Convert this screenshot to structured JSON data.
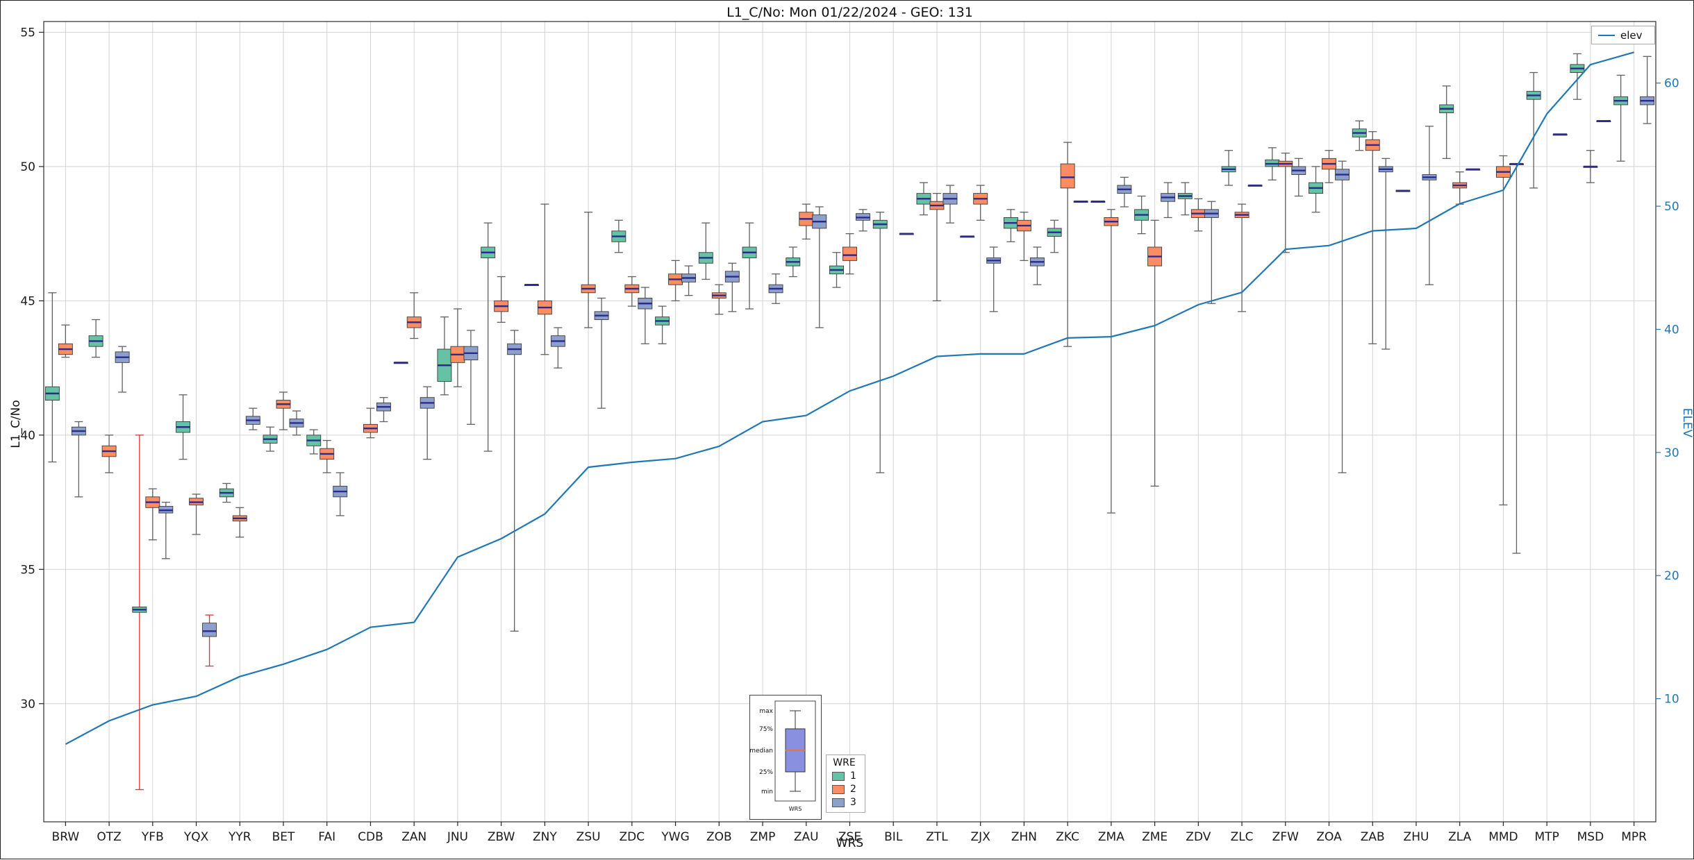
{
  "chart_data": {
    "type": "boxplot",
    "title": "L1_C/No: Mon 01/22/2024 - GEO: 131",
    "xlabel": "WRS",
    "ylabel": "L1_C/No",
    "ylabel_right": "ELEV",
    "ylim_left": [
      25.6,
      55.4
    ],
    "ylim_right": [
      0,
      65
    ],
    "yticks_left": [
      30,
      35,
      40,
      45,
      50,
      55
    ],
    "yticks_right": [
      10,
      20,
      30,
      40,
      50,
      60
    ],
    "grid": true,
    "legend_position": "upper right",
    "wre_legend_title": "WRE",
    "wre_series": [
      {
        "wre": "1",
        "color": "#66c2a5"
      },
      {
        "wre": "2",
        "color": "#fc8d62"
      },
      {
        "wre": "3",
        "color": "#8da0cb"
      }
    ],
    "median_color": "#2b2b8c",
    "whisker_color": "#606060",
    "categories": [
      "BRW",
      "OTZ",
      "YFB",
      "YQX",
      "YYR",
      "BET",
      "FAI",
      "CDB",
      "ZAN",
      "JNU",
      "ZBW",
      "ZNY",
      "ZSU",
      "ZDC",
      "YWG",
      "ZOB",
      "ZMP",
      "ZAU",
      "ZSE",
      "BIL",
      "ZTL",
      "ZJX",
      "ZHN",
      "ZKC",
      "ZMA",
      "ZME",
      "ZDV",
      "ZLC",
      "ZFW",
      "ZOA",
      "ZAB",
      "ZHU",
      "ZLA",
      "MMD",
      "MTP",
      "MSD",
      "MPR"
    ],
    "boxes": [
      [
        {
          "w": 1,
          "q1": 41.3,
          "m": 41.55,
          "q3": 41.8,
          "lo": 39.0,
          "hi": 45.3
        },
        {
          "w": 2,
          "q1": 43.0,
          "m": 43.2,
          "q3": 43.4,
          "lo": 42.9,
          "hi": 44.1
        },
        {
          "w": 3,
          "q1": 40.0,
          "m": 40.15,
          "q3": 40.3,
          "lo": 37.7,
          "hi": 40.5
        }
      ],
      [
        {
          "w": 1,
          "q1": 43.3,
          "m": 43.5,
          "q3": 43.7,
          "lo": 42.9,
          "hi": 44.3
        },
        {
          "w": 2,
          "q1": 39.2,
          "m": 39.4,
          "q3": 39.6,
          "lo": 38.6,
          "hi": 40.0
        },
        {
          "w": 3,
          "q1": 42.7,
          "m": 42.9,
          "q3": 43.1,
          "lo": 41.6,
          "hi": 43.3
        }
      ],
      [
        {
          "w": 1,
          "q1": 33.4,
          "m": 33.5,
          "q3": 33.6,
          "lo": 26.8,
          "hi": 40.0,
          "wc": "#e03131"
        },
        {
          "w": 2,
          "q1": 37.3,
          "m": 37.5,
          "q3": 37.7,
          "lo": 36.1,
          "hi": 38.0
        },
        {
          "w": 3,
          "q1": 37.1,
          "m": 37.2,
          "q3": 37.35,
          "lo": 35.4,
          "hi": 37.5
        }
      ],
      [
        {
          "w": 1,
          "q1": 40.1,
          "m": 40.3,
          "q3": 40.5,
          "lo": 39.1,
          "hi": 41.5
        },
        {
          "w": 2,
          "q1": 37.4,
          "m": 37.5,
          "q3": 37.65,
          "lo": 36.3,
          "hi": 37.8
        },
        {
          "w": 3,
          "q1": 32.5,
          "m": 32.7,
          "q3": 33.0,
          "lo": 31.4,
          "hi": 33.3,
          "wc": "#e03131"
        }
      ],
      [
        {
          "w": 1,
          "q1": 37.7,
          "m": 37.85,
          "q3": 38.0,
          "lo": 37.5,
          "hi": 38.2
        },
        {
          "w": 2,
          "q1": 36.8,
          "m": 36.9,
          "q3": 37.0,
          "lo": 36.2,
          "hi": 37.3
        },
        {
          "w": 3,
          "q1": 40.4,
          "m": 40.55,
          "q3": 40.7,
          "lo": 40.2,
          "hi": 41.0
        }
      ],
      [
        {
          "w": 1,
          "q1": 39.7,
          "m": 39.85,
          "q3": 40.0,
          "lo": 39.4,
          "hi": 40.3
        },
        {
          "w": 2,
          "q1": 41.0,
          "m": 41.15,
          "q3": 41.3,
          "lo": 40.2,
          "hi": 41.6
        },
        {
          "w": 3,
          "q1": 40.3,
          "m": 40.45,
          "q3": 40.6,
          "lo": 40.0,
          "hi": 40.9
        }
      ],
      [
        {
          "w": 1,
          "q1": 39.6,
          "m": 39.8,
          "q3": 40.0,
          "lo": 39.3,
          "hi": 40.2
        },
        {
          "w": 2,
          "q1": 39.1,
          "m": 39.3,
          "q3": 39.5,
          "lo": 38.6,
          "hi": 39.8
        },
        {
          "w": 3,
          "q1": 37.7,
          "m": 37.9,
          "q3": 38.1,
          "lo": 37.0,
          "hi": 38.6
        }
      ],
      [
        {
          "w": 2,
          "q1": 40.1,
          "m": 40.25,
          "q3": 40.4,
          "lo": 39.9,
          "hi": 41.0
        },
        {
          "w": 3,
          "q1": 40.9,
          "m": 41.05,
          "q3": 41.2,
          "lo": 40.5,
          "hi": 41.4
        }
      ],
      [
        {
          "w": 1,
          "q1": 42.7,
          "m": 42.7,
          "q3": 42.7,
          "lo": 42.7,
          "hi": 42.7
        },
        {
          "w": 2,
          "q1": 44.0,
          "m": 44.2,
          "q3": 44.4,
          "lo": 43.6,
          "hi": 45.3
        },
        {
          "w": 3,
          "q1": 41.0,
          "m": 41.2,
          "q3": 41.4,
          "lo": 39.1,
          "hi": 41.8
        }
      ],
      [
        {
          "w": 1,
          "q1": 42.0,
          "m": 42.6,
          "q3": 43.2,
          "lo": 41.5,
          "hi": 44.4
        },
        {
          "w": 2,
          "q1": 42.7,
          "m": 43.0,
          "q3": 43.3,
          "lo": 41.8,
          "hi": 44.7
        },
        {
          "w": 3,
          "q1": 42.8,
          "m": 43.05,
          "q3": 43.3,
          "lo": 40.4,
          "hi": 43.9
        }
      ],
      [
        {
          "w": 1,
          "q1": 46.6,
          "m": 46.8,
          "q3": 47.0,
          "lo": 39.4,
          "hi": 47.9
        },
        {
          "w": 2,
          "q1": 44.6,
          "m": 44.8,
          "q3": 45.0,
          "lo": 44.2,
          "hi": 45.9
        },
        {
          "w": 3,
          "q1": 43.0,
          "m": 43.2,
          "q3": 43.4,
          "lo": 32.7,
          "hi": 43.9
        }
      ],
      [
        {
          "w": 1,
          "q1": 45.6,
          "m": 45.6,
          "q3": 45.6,
          "lo": 45.6,
          "hi": 45.6
        },
        {
          "w": 2,
          "q1": 44.5,
          "m": 44.75,
          "q3": 45.0,
          "lo": 43.0,
          "hi": 48.6
        },
        {
          "w": 3,
          "q1": 43.3,
          "m": 43.5,
          "q3": 43.7,
          "lo": 42.5,
          "hi": 44.0
        }
      ],
      [
        {
          "w": 2,
          "q1": 45.3,
          "m": 45.45,
          "q3": 45.6,
          "lo": 44.0,
          "hi": 48.3
        },
        {
          "w": 3,
          "q1": 44.3,
          "m": 44.45,
          "q3": 44.6,
          "lo": 41.0,
          "hi": 45.1
        }
      ],
      [
        {
          "w": 1,
          "q1": 47.2,
          "m": 47.4,
          "q3": 47.6,
          "lo": 46.8,
          "hi": 48.0
        },
        {
          "w": 2,
          "q1": 45.3,
          "m": 45.45,
          "q3": 45.6,
          "lo": 44.8,
          "hi": 45.9
        },
        {
          "w": 3,
          "q1": 44.7,
          "m": 44.9,
          "q3": 45.1,
          "lo": 43.4,
          "hi": 45.5
        }
      ],
      [
        {
          "w": 1,
          "q1": 44.1,
          "m": 44.25,
          "q3": 44.4,
          "lo": 43.4,
          "hi": 44.8
        },
        {
          "w": 2,
          "q1": 45.6,
          "m": 45.8,
          "q3": 46.0,
          "lo": 45.0,
          "hi": 46.5
        },
        {
          "w": 3,
          "q1": 45.7,
          "m": 45.85,
          "q3": 46.0,
          "lo": 45.2,
          "hi": 46.3
        }
      ],
      [
        {
          "w": 1,
          "q1": 46.4,
          "m": 46.6,
          "q3": 46.8,
          "lo": 45.8,
          "hi": 47.9
        },
        {
          "w": 2,
          "q1": 45.1,
          "m": 45.2,
          "q3": 45.3,
          "lo": 44.5,
          "hi": 45.6
        },
        {
          "w": 3,
          "q1": 45.7,
          "m": 45.9,
          "q3": 46.1,
          "lo": 44.6,
          "hi": 46.4
        }
      ],
      [
        {
          "w": 1,
          "q1": 46.6,
          "m": 46.8,
          "q3": 47.0,
          "lo": 44.7,
          "hi": 47.9
        },
        {
          "w": 3,
          "q1": 45.3,
          "m": 45.45,
          "q3": 45.6,
          "lo": 44.9,
          "hi": 46.0
        }
      ],
      [
        {
          "w": 1,
          "q1": 46.3,
          "m": 46.45,
          "q3": 46.6,
          "lo": 45.9,
          "hi": 47.0
        },
        {
          "w": 2,
          "q1": 47.8,
          "m": 48.05,
          "q3": 48.3,
          "lo": 47.3,
          "hi": 48.6
        },
        {
          "w": 3,
          "q1": 47.7,
          "m": 47.95,
          "q3": 48.2,
          "lo": 44.0,
          "hi": 48.5
        }
      ],
      [
        {
          "w": 1,
          "q1": 46.0,
          "m": 46.15,
          "q3": 46.3,
          "lo": 45.5,
          "hi": 46.8
        },
        {
          "w": 2,
          "q1": 46.5,
          "m": 46.7,
          "q3": 47.0,
          "lo": 46.0,
          "hi": 47.5
        },
        {
          "w": 3,
          "q1": 48.0,
          "m": 48.1,
          "q3": 48.25,
          "lo": 47.6,
          "hi": 48.4
        }
      ],
      [
        {
          "w": 1,
          "q1": 47.7,
          "m": 47.85,
          "q3": 48.0,
          "lo": 38.6,
          "hi": 48.3
        },
        {
          "w": 3,
          "q1": 47.5,
          "m": 47.5,
          "q3": 47.5,
          "lo": 47.5,
          "hi": 47.5
        }
      ],
      [
        {
          "w": 1,
          "q1": 48.6,
          "m": 48.8,
          "q3": 49.0,
          "lo": 48.2,
          "hi": 49.4
        },
        {
          "w": 2,
          "q1": 48.4,
          "m": 48.55,
          "q3": 48.7,
          "lo": 45.0,
          "hi": 49.0
        },
        {
          "w": 3,
          "q1": 48.6,
          "m": 48.8,
          "q3": 49.0,
          "lo": 47.9,
          "hi": 49.3
        }
      ],
      [
        {
          "w": 1,
          "q1": 47.4,
          "m": 47.4,
          "q3": 47.4,
          "lo": 47.4,
          "hi": 47.4
        },
        {
          "w": 2,
          "q1": 48.6,
          "m": 48.8,
          "q3": 49.0,
          "lo": 48.0,
          "hi": 49.3
        },
        {
          "w": 3,
          "q1": 46.4,
          "m": 46.5,
          "q3": 46.6,
          "lo": 44.6,
          "hi": 47.0
        }
      ],
      [
        {
          "w": 1,
          "q1": 47.7,
          "m": 47.9,
          "q3": 48.1,
          "lo": 47.2,
          "hi": 48.4
        },
        {
          "w": 2,
          "q1": 47.6,
          "m": 47.8,
          "q3": 48.0,
          "lo": 46.5,
          "hi": 48.3
        },
        {
          "w": 3,
          "q1": 46.3,
          "m": 46.45,
          "q3": 46.6,
          "lo": 45.6,
          "hi": 47.0
        }
      ],
      [
        {
          "w": 1,
          "q1": 47.4,
          "m": 47.55,
          "q3": 47.7,
          "lo": 46.8,
          "hi": 48.0
        },
        {
          "w": 2,
          "q1": 49.2,
          "m": 49.6,
          "q3": 50.1,
          "lo": 43.3,
          "hi": 50.9
        },
        {
          "w": 3,
          "q1": 48.7,
          "m": 48.7,
          "q3": 48.7,
          "lo": 48.7,
          "hi": 48.7
        }
      ],
      [
        {
          "w": 1,
          "q1": 48.7,
          "m": 48.7,
          "q3": 48.7,
          "lo": 48.7,
          "hi": 48.7
        },
        {
          "w": 2,
          "q1": 47.8,
          "m": 47.95,
          "q3": 48.1,
          "lo": 37.1,
          "hi": 48.4
        },
        {
          "w": 3,
          "q1": 49.0,
          "m": 49.15,
          "q3": 49.3,
          "lo": 48.5,
          "hi": 49.6
        }
      ],
      [
        {
          "w": 1,
          "q1": 48.0,
          "m": 48.2,
          "q3": 48.4,
          "lo": 47.5,
          "hi": 48.9
        },
        {
          "w": 2,
          "q1": 46.3,
          "m": 46.65,
          "q3": 47.0,
          "lo": 38.1,
          "hi": 48.0
        },
        {
          "w": 3,
          "q1": 48.7,
          "m": 48.85,
          "q3": 49.0,
          "lo": 48.1,
          "hi": 49.4
        }
      ],
      [
        {
          "w": 1,
          "q1": 48.8,
          "m": 48.9,
          "q3": 49.0,
          "lo": 48.2,
          "hi": 49.4
        },
        {
          "w": 2,
          "q1": 48.1,
          "m": 48.25,
          "q3": 48.4,
          "lo": 47.6,
          "hi": 48.8
        },
        {
          "w": 3,
          "q1": 48.1,
          "m": 48.25,
          "q3": 48.4,
          "lo": 44.9,
          "hi": 48.7
        }
      ],
      [
        {
          "w": 1,
          "q1": 49.8,
          "m": 49.9,
          "q3": 50.0,
          "lo": 49.3,
          "hi": 50.6
        },
        {
          "w": 2,
          "q1": 48.1,
          "m": 48.2,
          "q3": 48.3,
          "lo": 44.6,
          "hi": 48.6
        },
        {
          "w": 3,
          "q1": 49.3,
          "m": 49.3,
          "q3": 49.3,
          "lo": 49.3,
          "hi": 49.3
        }
      ],
      [
        {
          "w": 1,
          "q1": 50.0,
          "m": 50.1,
          "q3": 50.25,
          "lo": 49.5,
          "hi": 50.7
        },
        {
          "w": 2,
          "q1": 50.0,
          "m": 50.1,
          "q3": 50.2,
          "lo": 46.8,
          "hi": 50.5
        },
        {
          "w": 3,
          "q1": 49.7,
          "m": 49.85,
          "q3": 50.0,
          "lo": 48.9,
          "hi": 50.3
        }
      ],
      [
        {
          "w": 1,
          "q1": 49.0,
          "m": 49.2,
          "q3": 49.4,
          "lo": 48.3,
          "hi": 50.0
        },
        {
          "w": 2,
          "q1": 49.9,
          "m": 50.1,
          "q3": 50.3,
          "lo": 49.4,
          "hi": 50.6
        },
        {
          "w": 3,
          "q1": 49.5,
          "m": 49.7,
          "q3": 49.9,
          "lo": 38.6,
          "hi": 50.2
        }
      ],
      [
        {
          "w": 1,
          "q1": 51.1,
          "m": 51.25,
          "q3": 51.4,
          "lo": 50.6,
          "hi": 51.7
        },
        {
          "w": 2,
          "q1": 50.6,
          "m": 50.8,
          "q3": 51.0,
          "lo": 43.4,
          "hi": 51.3
        },
        {
          "w": 3,
          "q1": 49.8,
          "m": 49.9,
          "q3": 50.0,
          "lo": 43.2,
          "hi": 50.3
        }
      ],
      [
        {
          "w": 1,
          "q1": 49.1,
          "m": 49.1,
          "q3": 49.1,
          "lo": 49.1,
          "hi": 49.1
        },
        {
          "w": 3,
          "q1": 49.5,
          "m": 49.6,
          "q3": 49.7,
          "lo": 45.6,
          "hi": 51.5
        }
      ],
      [
        {
          "w": 1,
          "q1": 52.0,
          "m": 52.15,
          "q3": 52.3,
          "lo": 50.3,
          "hi": 53.0
        },
        {
          "w": 2,
          "q1": 49.2,
          "m": 49.3,
          "q3": 49.4,
          "lo": 48.6,
          "hi": 49.8
        },
        {
          "w": 3,
          "q1": 49.9,
          "m": 49.9,
          "q3": 49.9,
          "lo": 49.9,
          "hi": 49.9
        }
      ],
      [
        {
          "w": 2,
          "q1": 49.6,
          "m": 49.8,
          "q3": 50.0,
          "lo": 37.4,
          "hi": 50.4
        },
        {
          "w": 3,
          "q1": 50.1,
          "m": 50.1,
          "q3": 50.1,
          "lo": 35.6,
          "hi": 50.1
        }
      ],
      [
        {
          "w": 1,
          "q1": 52.5,
          "m": 52.65,
          "q3": 52.8,
          "lo": 49.2,
          "hi": 53.5
        },
        {
          "w": 3,
          "q1": 51.2,
          "m": 51.2,
          "q3": 51.2,
          "lo": 51.2,
          "hi": 51.2
        }
      ],
      [
        {
          "w": 1,
          "q1": 53.5,
          "m": 53.65,
          "q3": 53.8,
          "lo": 52.5,
          "hi": 54.2
        },
        {
          "w": 2,
          "q1": 50.0,
          "m": 50.0,
          "q3": 50.0,
          "lo": 49.4,
          "hi": 50.6
        },
        {
          "w": 3,
          "q1": 51.7,
          "m": 51.7,
          "q3": 51.7,
          "lo": 51.7,
          "hi": 51.7
        }
      ],
      [
        {
          "w": 1,
          "q1": 52.3,
          "m": 52.45,
          "q3": 52.6,
          "lo": 50.2,
          "hi": 53.4
        },
        {
          "w": 3,
          "q1": 52.3,
          "m": 52.45,
          "q3": 52.6,
          "lo": 51.6,
          "hi": 54.1
        }
      ]
    ],
    "line_series": {
      "name": "elev",
      "color": "#1f77b4",
      "axis": "right",
      "values": [
        6.3,
        8.2,
        9.5,
        10.2,
        11.8,
        12.8,
        14.0,
        15.8,
        16.2,
        21.5,
        23.0,
        25.0,
        28.8,
        29.2,
        29.5,
        30.5,
        32.5,
        33.0,
        35.0,
        36.2,
        37.8,
        38.0,
        38.0,
        39.3,
        39.4,
        40.3,
        42.0,
        43.0,
        46.5,
        46.8,
        48.0,
        48.2,
        50.2,
        51.3,
        57.5,
        61.5,
        62.5
      ]
    },
    "inset_legend": {
      "labels": [
        "max",
        "75%",
        "median",
        "25%",
        "min"
      ],
      "xlabel": "WRS",
      "box_color": "#8a90e0",
      "median_color": "#e8743b"
    }
  }
}
